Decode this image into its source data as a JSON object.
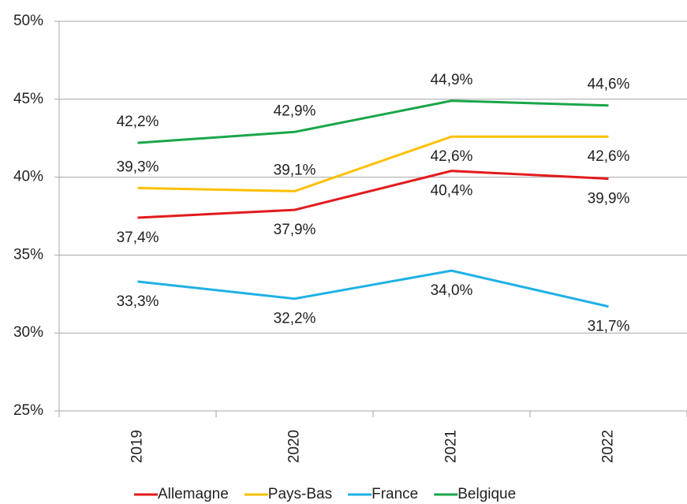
{
  "chart_data": {
    "type": "line",
    "categories": [
      "2019",
      "2020",
      "2021",
      "2022"
    ],
    "series": [
      {
        "name": "Allemagne",
        "color": "#e31a1c",
        "values": [
          37.4,
          37.9,
          40.4,
          39.9
        ],
        "value_labels": [
          "37,4%",
          "37,9%",
          "40,4%",
          "39,9%"
        ]
      },
      {
        "name": "Pays-Bas",
        "color": "#ffc000",
        "values": [
          39.3,
          39.1,
          42.6,
          42.6
        ],
        "value_labels": [
          "39,3%",
          "39,1%",
          "42,6%",
          "42,6%"
        ]
      },
      {
        "name": "France",
        "color": "#1fb1e6",
        "values": [
          33.3,
          32.2,
          34.0,
          31.7
        ],
        "value_labels": [
          "33,3%",
          "32,2%",
          "34,0%",
          "31,7%"
        ]
      },
      {
        "name": "Belgique",
        "color": "#1aa64a",
        "values": [
          42.2,
          42.9,
          44.9,
          44.6
        ],
        "value_labels": [
          "42,2%",
          "42,9%",
          "44,9%",
          "44,6%"
        ]
      }
    ],
    "ylim": [
      25,
      50
    ],
    "yticks": [
      {
        "value": 25,
        "label": "25%"
      },
      {
        "value": 30,
        "label": "30%"
      },
      {
        "value": 35,
        "label": "35%"
      },
      {
        "value": 40,
        "label": "40%"
      },
      {
        "value": 45,
        "label": "45%"
      },
      {
        "value": 50,
        "label": "50%"
      }
    ],
    "grid": true
  }
}
